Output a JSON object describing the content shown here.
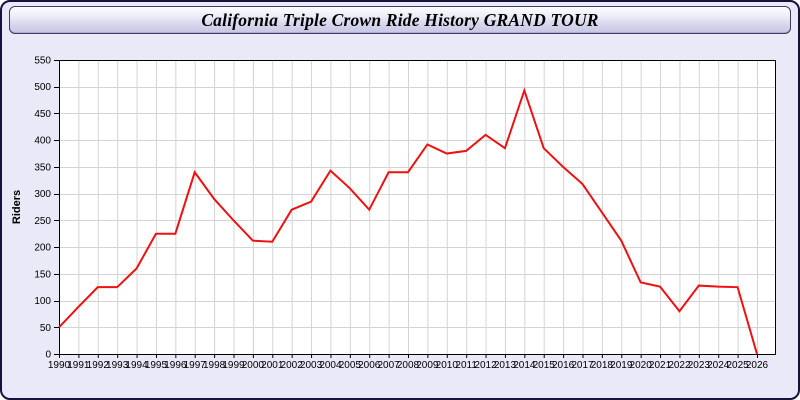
{
  "window": {
    "title": "California Triple Crown Ride History GRAND TOUR"
  },
  "colors": {
    "background": "#e9e9f8",
    "window_border": "#14143c",
    "titlebar_border": "#3c3c64",
    "plot_background": "#ffffff",
    "grid": "#d4d4d4",
    "frame": "#000000",
    "line": "#ee1111",
    "text": "#000000"
  },
  "chart_data": {
    "type": "line",
    "title": "California Triple Crown Ride History GRAND TOUR",
    "xlabel": "",
    "ylabel": "Riders",
    "ylim": [
      0,
      550
    ],
    "ytick_step": 50,
    "grid": true,
    "legend_position": "none",
    "x": [
      1990,
      1991,
      1992,
      1993,
      1994,
      1995,
      1996,
      1997,
      1998,
      1999,
      2000,
      2001,
      2002,
      2003,
      2004,
      2005,
      2006,
      2007,
      2008,
      2009,
      2010,
      2011,
      2012,
      2013,
      2014,
      2015,
      2016,
      2017,
      2018,
      2019,
      2020,
      2021,
      2022,
      2023,
      2024,
      2025,
      2026
    ],
    "series": [
      {
        "name": "Riders",
        "values": [
          50,
          88,
          125,
          125,
          160,
          225,
          225,
          340,
          290,
          250,
          212,
          210,
          270,
          285,
          343,
          310,
          270,
          340,
          340,
          392,
          375,
          380,
          410,
          385,
          493,
          385,
          350,
          318,
          265,
          212,
          134,
          126,
          80,
          128,
          126,
          125,
          0
        ]
      }
    ]
  }
}
